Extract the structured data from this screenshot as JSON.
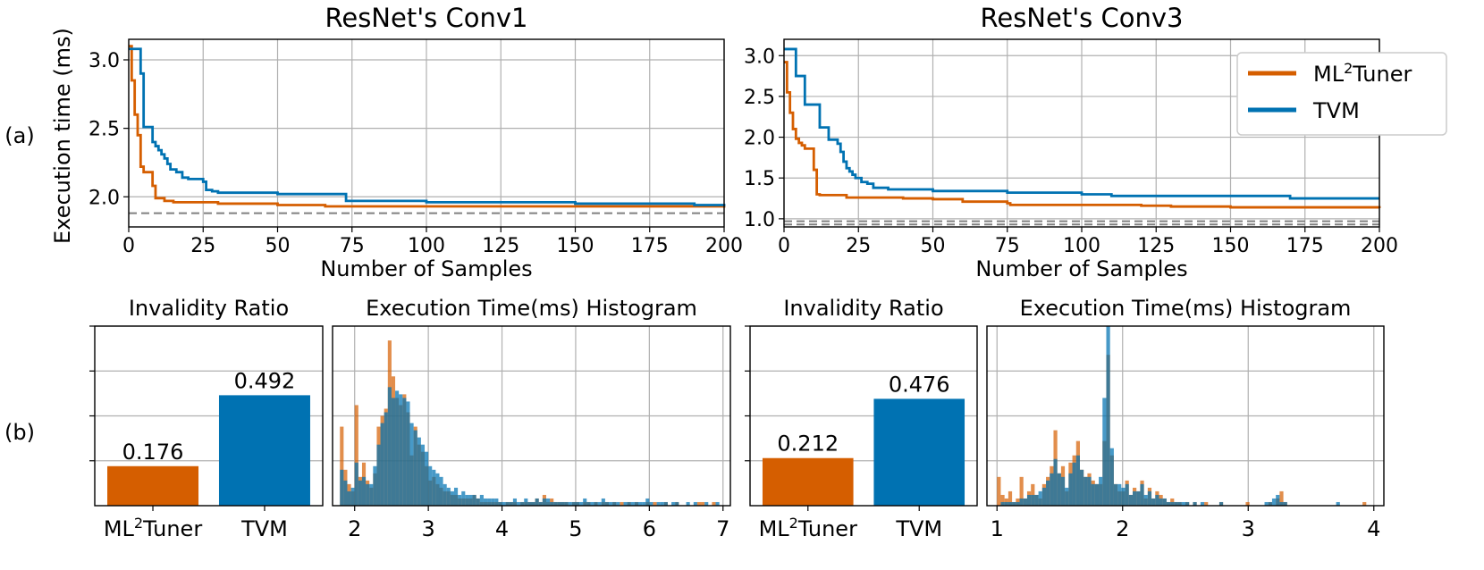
{
  "colors": {
    "ml2tuner": "#d55e00",
    "tvm": "#0072b2",
    "grid": "#b0b0b0",
    "dashed": "#808080"
  },
  "row_labels": {
    "a": "(a)",
    "b": "(b)"
  },
  "shared_ylabel": "Execution time (ms)",
  "legend": {
    "ml2tuner_prefix": "ML",
    "ml2tuner_sup": "2",
    "ml2tuner_suffix": "Tuner",
    "tvm": "TVM"
  },
  "chart_data": [
    {
      "type": "line",
      "title": "ResNet's Conv1",
      "xlabel": "Number of Samples",
      "ylabel": "Execution time (ms)",
      "xlim": [
        0,
        200
      ],
      "ylim": [
        1.78,
        3.15
      ],
      "xticks": [
        0,
        25,
        50,
        75,
        100,
        125,
        150,
        175,
        200
      ],
      "yticks": [
        2.0,
        2.5,
        3.0
      ],
      "ytick_labels": [
        "2.0",
        "2.5",
        "3.0"
      ],
      "reference_lines": [
        1.88
      ],
      "series": [
        {
          "name": "ML2Tuner",
          "step": true,
          "x": [
            0,
            1,
            2,
            3,
            4,
            5,
            6,
            7,
            8,
            9,
            10,
            12,
            15,
            20,
            30,
            40,
            50,
            65,
            66,
            100,
            150,
            200
          ],
          "y": [
            3.1,
            2.85,
            2.6,
            2.45,
            2.22,
            2.18,
            2.18,
            2.18,
            2.08,
            1.99,
            1.99,
            1.97,
            1.96,
            1.96,
            1.95,
            1.95,
            1.94,
            1.94,
            1.93,
            1.93,
            1.93,
            1.92
          ]
        },
        {
          "name": "TVM",
          "step": true,
          "x": [
            0,
            1,
            4,
            5,
            6,
            8,
            9,
            10,
            11,
            12,
            13,
            14,
            16,
            18,
            20,
            25,
            26,
            28,
            30,
            40,
            50,
            72,
            73,
            100,
            150,
            170,
            190,
            200
          ],
          "y": [
            3.08,
            3.08,
            2.9,
            2.51,
            2.51,
            2.4,
            2.37,
            2.34,
            2.31,
            2.28,
            2.24,
            2.2,
            2.18,
            2.14,
            2.13,
            2.11,
            2.05,
            2.04,
            2.03,
            2.03,
            2.02,
            2.02,
            1.97,
            1.96,
            1.95,
            1.95,
            1.94,
            1.93
          ]
        }
      ]
    },
    {
      "type": "line",
      "title": "ResNet's Conv3",
      "xlabel": "Number of Samples",
      "ylabel": "",
      "xlim": [
        0,
        200
      ],
      "ylim": [
        0.9,
        3.2
      ],
      "xticks": [
        0,
        25,
        50,
        75,
        100,
        125,
        150,
        175,
        200
      ],
      "yticks": [
        1.0,
        1.5,
        2.0,
        2.5,
        3.0
      ],
      "ytick_labels": [
        "1.0",
        "1.5",
        "2.0",
        "2.5",
        "3.0"
      ],
      "reference_lines": [
        0.93,
        0.97
      ],
      "series": [
        {
          "name": "ML2Tuner",
          "step": true,
          "x": [
            0,
            1,
            2,
            3,
            4,
            5,
            6,
            7,
            8,
            9,
            10,
            11,
            12,
            20,
            21,
            40,
            50,
            60,
            75,
            76,
            100,
            120,
            130,
            150,
            200
          ],
          "y": [
            2.92,
            2.55,
            2.3,
            2.1,
            1.98,
            1.93,
            1.9,
            1.86,
            1.86,
            1.86,
            1.6,
            1.3,
            1.29,
            1.29,
            1.26,
            1.25,
            1.24,
            1.21,
            1.19,
            1.17,
            1.17,
            1.16,
            1.15,
            1.14,
            1.13
          ]
        },
        {
          "name": "TVM",
          "step": true,
          "x": [
            0,
            4,
            7,
            12,
            13,
            15,
            16,
            17,
            18,
            19,
            20,
            21,
            22,
            23,
            24,
            26,
            28,
            30,
            35,
            50,
            75,
            100,
            110,
            170,
            200
          ],
          "y": [
            3.08,
            2.75,
            2.4,
            2.12,
            2.12,
            1.97,
            1.97,
            1.97,
            1.92,
            1.82,
            1.7,
            1.62,
            1.58,
            1.54,
            1.5,
            1.45,
            1.43,
            1.38,
            1.36,
            1.34,
            1.32,
            1.3,
            1.28,
            1.25,
            1.25
          ]
        }
      ]
    },
    {
      "type": "bar",
      "title": "Invalidity Ratio",
      "categories_prefix": [
        "ML",
        "TVM"
      ],
      "categories": [
        "ML2Tuner",
        "TVM"
      ],
      "values": [
        0.176,
        0.492
      ],
      "value_labels": [
        "0.176",
        "0.492"
      ],
      "ylim": [
        0,
        0.8
      ],
      "yticks": [
        0.2,
        0.4,
        0.6,
        0.8
      ]
    },
    {
      "type": "bar",
      "title": "Execution Time(ms) Histogram",
      "xlim": [
        1.7,
        7.1
      ],
      "xticks": [
        2,
        3,
        4,
        5,
        6,
        7
      ],
      "xtick_labels": [
        "2",
        "3",
        "4",
        "5",
        "6",
        "7"
      ],
      "ylim": [
        0,
        50
      ],
      "bin_edges": [
        1.8,
        1.85,
        1.9,
        1.95,
        2.0,
        2.05,
        2.1,
        2.15,
        2.2,
        2.25,
        2.3,
        2.35,
        2.4,
        2.45,
        2.5,
        2.55,
        2.6,
        2.65,
        2.7,
        2.75,
        2.8,
        2.85,
        2.9,
        2.95,
        3.0,
        3.05,
        3.1,
        3.15,
        3.2,
        3.25,
        3.3,
        3.35,
        3.4,
        3.45,
        3.5,
        3.55,
        3.6,
        3.65,
        3.7,
        3.75,
        3.8,
        3.85,
        3.9,
        3.95,
        4.0,
        4.05,
        4.1,
        4.15,
        4.2,
        4.25,
        4.3,
        4.35,
        4.4,
        4.45,
        4.5,
        4.55,
        4.6,
        4.65,
        4.7,
        4.75,
        4.8,
        4.85,
        4.9,
        4.95,
        5.0,
        5.05,
        5.1,
        5.15,
        5.2,
        5.25,
        5.3,
        5.35,
        5.4,
        5.45,
        5.5,
        5.55,
        5.6,
        5.65,
        5.7,
        5.75,
        5.8,
        5.85,
        5.9,
        5.95,
        6.0,
        6.05,
        6.1,
        6.15,
        6.2,
        6.25,
        6.3,
        6.35,
        6.4,
        6.45,
        6.5,
        6.55,
        6.6,
        6.65,
        6.7,
        6.75,
        6.8,
        6.85,
        6.9,
        6.95,
        7.0
      ],
      "series": [
        {
          "name": "ML2Tuner",
          "counts": [
            22,
            10,
            6,
            4,
            28,
            8,
            12,
            7,
            5,
            9,
            22,
            25,
            27,
            46,
            36,
            30,
            28,
            31,
            26,
            14,
            22,
            17,
            15,
            11,
            7,
            8,
            6,
            5,
            4,
            4,
            3,
            3,
            2,
            2,
            2,
            2,
            3,
            2,
            1,
            1,
            1,
            1,
            1,
            1,
            0,
            1,
            1,
            1,
            0,
            1,
            1,
            1,
            1,
            2,
            1,
            3,
            1,
            2,
            1,
            1,
            1,
            1,
            0,
            1,
            1,
            0,
            1,
            1,
            0,
            1,
            0,
            1,
            1,
            0,
            1,
            0,
            1,
            0,
            1,
            0,
            1,
            0,
            0,
            1,
            0,
            1,
            0,
            0,
            1,
            0,
            0,
            1,
            0,
            0,
            0,
            0,
            0,
            1,
            1,
            0,
            0,
            1,
            0,
            0
          ]
        },
        {
          "name": "TVM",
          "counts": [
            10,
            7,
            4,
            5,
            12,
            7,
            8,
            6,
            6,
            11,
            17,
            23,
            26,
            33,
            30,
            32,
            31,
            30,
            29,
            23,
            21,
            19,
            17,
            15,
            11,
            10,
            9,
            8,
            6,
            5,
            4,
            5,
            3,
            4,
            3,
            3,
            3,
            2,
            3,
            2,
            2,
            2,
            2,
            1,
            1,
            1,
            1,
            2,
            1,
            1,
            2,
            1,
            1,
            2,
            1,
            2,
            2,
            1,
            1,
            1,
            1,
            1,
            1,
            1,
            1,
            1,
            2,
            1,
            1,
            1,
            1,
            2,
            1,
            1,
            1,
            1,
            0,
            1,
            1,
            1,
            1,
            1,
            1,
            2,
            1,
            0,
            1,
            1,
            1,
            0,
            1,
            1,
            0,
            0,
            1,
            0,
            1,
            0,
            0,
            1,
            0,
            0,
            1,
            0
          ]
        }
      ]
    },
    {
      "type": "bar",
      "title": "Invalidity Ratio",
      "categories_prefix": [
        "ML",
        "TVM"
      ],
      "categories": [
        "ML2Tuner",
        "TVM"
      ],
      "values": [
        0.212,
        0.476
      ],
      "value_labels": [
        "0.212",
        "0.476"
      ],
      "ylim": [
        0,
        0.8
      ],
      "yticks": [
        0.2,
        0.4,
        0.6,
        0.8
      ]
    },
    {
      "type": "bar",
      "title": "Execution Time(ms) Histogram",
      "xlim": [
        0.92,
        4.08
      ],
      "xticks": [
        1,
        2,
        3,
        4
      ],
      "xtick_labels": [
        "1",
        "2",
        "3",
        "4"
      ],
      "ylim": [
        0,
        50
      ],
      "bin_edges": [
        1.0,
        1.03,
        1.06,
        1.09,
        1.12,
        1.15,
        1.18,
        1.21,
        1.24,
        1.27,
        1.3,
        1.33,
        1.36,
        1.39,
        1.42,
        1.45,
        1.48,
        1.51,
        1.54,
        1.57,
        1.6,
        1.63,
        1.66,
        1.69,
        1.72,
        1.75,
        1.78,
        1.81,
        1.84,
        1.87,
        1.9,
        1.93,
        1.96,
        1.99,
        2.02,
        2.05,
        2.08,
        2.11,
        2.14,
        2.17,
        2.2,
        2.23,
        2.26,
        2.29,
        2.32,
        2.35,
        2.38,
        2.41,
        2.44,
        2.47,
        2.5,
        2.53,
        2.56,
        2.59,
        2.62,
        2.65,
        2.68,
        2.71,
        2.74,
        2.77,
        2.8,
        2.83,
        2.86,
        2.89,
        2.92,
        2.95,
        2.98,
        3.01,
        3.04,
        3.07,
        3.1,
        3.13,
        3.16,
        3.19,
        3.22,
        3.25,
        3.28,
        3.31,
        3.34,
        3.37,
        3.4,
        3.43,
        3.46,
        3.49,
        3.52,
        3.55,
        3.58,
        3.61,
        3.64,
        3.67,
        3.7,
        3.73,
        3.76,
        3.79,
        3.82,
        3.85,
        3.88,
        3.91,
        3.94,
        3.97,
        4.0
      ],
      "series": [
        {
          "name": "ML2Tuner",
          "counts": [
            8,
            3,
            2,
            4,
            1,
            2,
            8,
            2,
            4,
            6,
            3,
            2,
            6,
            8,
            11,
            21,
            9,
            11,
            4,
            12,
            14,
            18,
            10,
            8,
            9,
            7,
            6,
            6,
            18,
            42,
            14,
            6,
            4,
            4,
            7,
            3,
            5,
            4,
            7,
            2,
            5,
            2,
            4,
            3,
            2,
            1,
            2,
            1,
            1,
            0,
            1,
            0,
            1,
            0,
            0,
            1,
            0,
            0,
            0,
            1,
            0,
            0,
            0,
            0,
            0,
            0,
            1,
            0,
            0,
            0,
            0,
            0,
            1,
            0,
            2,
            4,
            1,
            0,
            0,
            0,
            0,
            0,
            0,
            0,
            0,
            0,
            0,
            0,
            0,
            0,
            0,
            0,
            0,
            0,
            0,
            0,
            0,
            1,
            0,
            0
          ]
        },
        {
          "name": "TVM",
          "counts": [
            0,
            1,
            1,
            1,
            1,
            1,
            2,
            2,
            3,
            3,
            3,
            4,
            5,
            7,
            9,
            13,
            9,
            8,
            5,
            9,
            12,
            14,
            10,
            8,
            8,
            6,
            6,
            8,
            30,
            50,
            16,
            6,
            6,
            5,
            6,
            3,
            4,
            4,
            6,
            3,
            4,
            2,
            3,
            2,
            2,
            1,
            1,
            1,
            1,
            1,
            1,
            0,
            1,
            0,
            1,
            0,
            0,
            0,
            0,
            1,
            0,
            0,
            0,
            0,
            0,
            0,
            0,
            0,
            0,
            0,
            0,
            1,
            1,
            2,
            3,
            1,
            1,
            0,
            0,
            0,
            0,
            0,
            0,
            0,
            0,
            0,
            0,
            0,
            0,
            0,
            1,
            0,
            0,
            0,
            0,
            0,
            0,
            0,
            0,
            0
          ]
        }
      ]
    }
  ]
}
